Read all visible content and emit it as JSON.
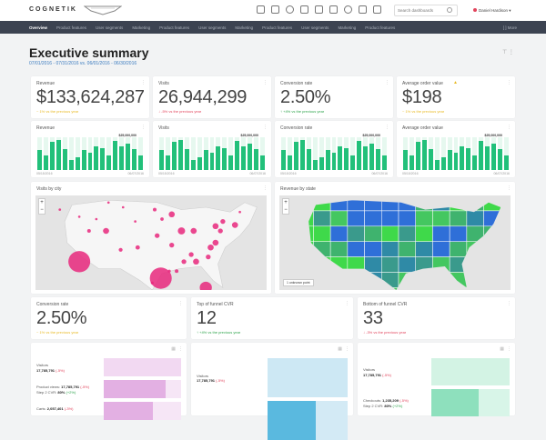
{
  "header": {
    "logo": "COGNETIK",
    "search_placeholder": "Search dashboards",
    "user": "Daniel Hardison",
    "tools": [
      "report-icon",
      "calendar-icon",
      "record-icon",
      "monitor-icon",
      "download-icon",
      "schedule-icon",
      "settings-icon",
      "share-icon",
      "lock-icon"
    ]
  },
  "nav": {
    "items": [
      "Overview",
      "Product features",
      "User segments",
      "Marketing",
      "Product features",
      "User segments",
      "Marketing",
      "Product features",
      "User segments",
      "Marketing",
      "Product features"
    ],
    "more": "[ ] More"
  },
  "page": {
    "title": "Executive summary",
    "dates": "07/01/2016 - 07/31/2016 vs. 06/01/2016 - 06/30/2016"
  },
  "kpis": [
    {
      "title": "Revenue",
      "value": "$133,624,287",
      "delta": "~ 1% vs the previous year",
      "color": "#e8b923"
    },
    {
      "title": "Visits",
      "value": "26,944,299",
      "delta": "↓ -5% vs the previous year",
      "color": "#e2445c"
    },
    {
      "title": "Conversion rate",
      "value": "2.50%",
      "delta": "↑ +4% vs the previous year",
      "color": "#2ca34a"
    },
    {
      "title": "Average order value",
      "value": "$198",
      "delta": "~ 1% vs the previous year",
      "color": "#e8b923",
      "warning": true
    }
  ],
  "sparks": {
    "titles": [
      "Revenue",
      "Visits",
      "Conversion rate",
      "Average order value"
    ],
    "max_label": "$25,000,000",
    "start": "05/15/2016",
    "end": "06/07/2016",
    "values": [
      0.62,
      0.45,
      0.85,
      0.92,
      0.65,
      0.3,
      0.4,
      0.6,
      0.52,
      0.72,
      0.66,
      0.45,
      0.88,
      0.72,
      0.8,
      0.65,
      0.45
    ],
    "color": "#22c07a",
    "bg": "#e6f8ef"
  },
  "maps": {
    "city_title": "Visits by city",
    "state_title": "Revenue by state",
    "unknown": "1 unknown point",
    "zoom_in": "+",
    "zoom_out": "−",
    "bubble_color": "#e8287c"
  },
  "kpis2": [
    {
      "title": "Conversion rate",
      "value": "2.50%",
      "delta": "~ 1% vs the previous year",
      "color": "#e8b923"
    },
    {
      "title": "Top of funnel CVR",
      "value": "12",
      "delta": "↑ +4% vs the previous year",
      "color": "#2ca34a"
    },
    {
      "title": "Bottom of funnel CVR",
      "value": "33",
      "delta": "↓ -3% vs the previous year",
      "color": "#e2445c"
    }
  ],
  "funnels": [
    {
      "color": "#e3b0e3",
      "light": "#f6e6f6",
      "steps": [
        {
          "label": "Visitors",
          "value": "17,785,791",
          "pct": "(-5%)",
          "fill": 1
        },
        {
          "label": "Product views:",
          "value": "17,785,791",
          "pct": "(-5%)",
          "cvr": "Step 2 CVR:",
          "cvr_val": "80%",
          "cvr_delta": "(+2%)",
          "fill": 0.8
        },
        {
          "label": "Carts:",
          "value": "2,057,401",
          "pct": "(-3%)",
          "fill": 0.63
        }
      ]
    },
    {
      "color": "#5ab9df",
      "light": "#d3eaf5",
      "steps": [
        {
          "label": "Visitors",
          "value": "17,785,791",
          "pct": "(-5%)",
          "fill": 1
        },
        {
          "label": "",
          "value": "",
          "pct": "",
          "fill": 0.6
        }
      ]
    },
    {
      "color": "#8ee0bd",
      "light": "#d8f5e8",
      "steps": [
        {
          "label": "Visitors",
          "value": "17,785,791",
          "pct": "(-5%)",
          "fill": 1
        },
        {
          "label": "Checkouts:",
          "value": "1,235,209",
          "pct": "(-5%)",
          "cvr": "Step 2 CVR:",
          "cvr_val": "80%",
          "cvr_delta": "(+2%)",
          "fill": 0.6
        }
      ]
    }
  ]
}
